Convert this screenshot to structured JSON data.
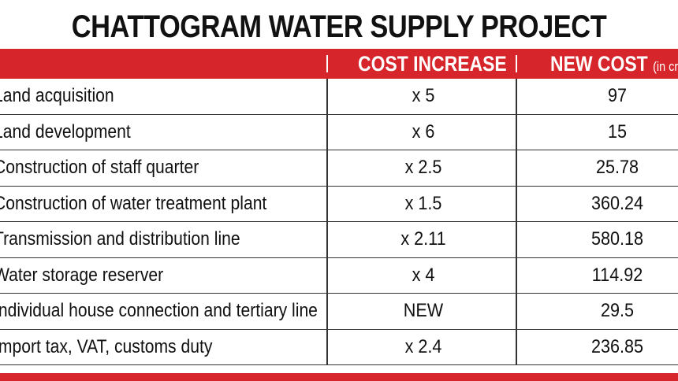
{
  "title": "CHATTOGRAM WATER SUPPLY PROJECT",
  "header": {
    "col_increase": "COST INCREASE",
    "col_cost": "NEW COST",
    "col_cost_unit": "(in cr Tk)"
  },
  "rows": [
    {
      "item": "Land acquisition",
      "increase": "x 5",
      "cost": "97"
    },
    {
      "item": "Land development",
      "increase": "x 6",
      "cost": "15"
    },
    {
      "item": "Construction of staff quarter",
      "increase": "x 2.5",
      "cost": "25.78"
    },
    {
      "item": "Construction of water treatment plant",
      "increase": "x 1.5",
      "cost": "360.24"
    },
    {
      "item": "Transmission and distribution line",
      "increase": "x 2.11",
      "cost": "580.18"
    },
    {
      "item": "Water storage reserver",
      "increase": "x 4",
      "cost": "114.92"
    },
    {
      "item": "Individual house connection and tertiary line",
      "increase": "NEW",
      "cost": "29.5"
    },
    {
      "item": "Import tax, VAT, customs duty",
      "increase": "x 2.4",
      "cost": "236.85"
    }
  ],
  "colors": {
    "accent": "#d7262b",
    "text": "#111111",
    "background": "#ffffff"
  }
}
